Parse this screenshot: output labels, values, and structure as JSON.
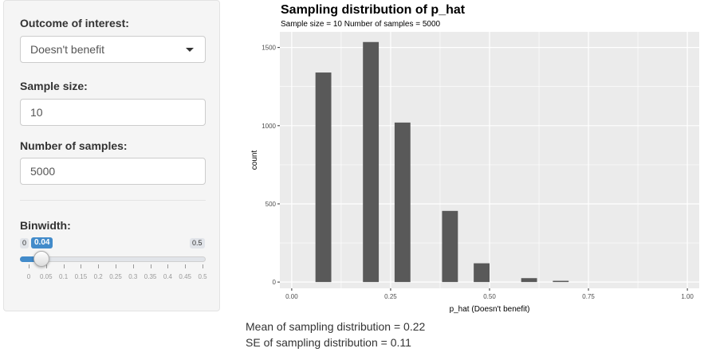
{
  "sidebar": {
    "outcome_label": "Outcome of interest:",
    "outcome_value": "Doesn't benefit",
    "sample_size_label": "Sample size:",
    "sample_size_value": "10",
    "num_samples_label": "Number of samples:",
    "num_samples_value": "5000",
    "binwidth_label": "Binwidth:",
    "binwidth": {
      "min": "0",
      "max": "0.5",
      "value": "0.04",
      "value_num": 0.04,
      "ticks": [
        "0",
        "0.05",
        "0.1",
        "0.15",
        "0.2",
        "0.25",
        "0.3",
        "0.35",
        "0.4",
        "0.45",
        "0.5"
      ]
    }
  },
  "plot": {
    "title": "Sampling distribution of p_hat",
    "subtitle": "Sample size = 10 Number of samples = 5000"
  },
  "summary": {
    "mean_text": "Mean of sampling distribution = 0.22",
    "se_text": "SE of sampling distribution = 0.11"
  },
  "colors": {
    "panel_bg": "#ebebeb",
    "grid": "#ffffff",
    "bar": "#595959",
    "slider_accent": "#428bca"
  },
  "chart_data": {
    "type": "bar",
    "title": "Sampling distribution of p_hat",
    "subtitle": "Sample size = 10 Number of samples = 5000",
    "xlabel": "p_hat (Doesn't benefit)",
    "ylabel": "count",
    "xlim": [
      -0.03,
      1.03
    ],
    "ylim": [
      -40,
      1600
    ],
    "xticks": [
      0,
      0.25,
      0.5,
      0.75,
      1
    ],
    "xtick_labels": [
      "0.00",
      "0.25",
      "0.50",
      "0.75",
      "1.00"
    ],
    "yticks": [
      0,
      500,
      1000,
      1500
    ],
    "ytick_labels": [
      "0",
      "500",
      "1000",
      "1500"
    ],
    "bin_width": 0.04,
    "x": [
      0.08,
      0.2,
      0.28,
      0.4,
      0.48,
      0.6,
      0.68
    ],
    "values": [
      1340,
      1535,
      1020,
      455,
      120,
      25,
      8
    ],
    "grid": true
  }
}
